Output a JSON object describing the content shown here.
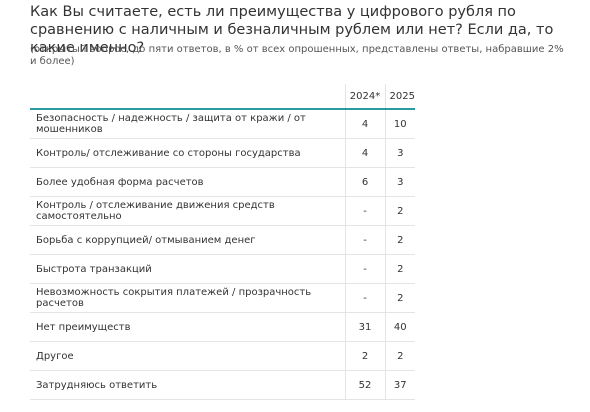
{
  "header": {
    "title": "Как Вы считаете, есть ли преимущества у цифрового рубля по сравнению с наличным и безналичным рублем или нет? Если да, то какие именно?",
    "subtitle": "(открытый вопрос, до пяти ответов, в % от всех опрошенных, представлены ответы, набравшие 2% и более)"
  },
  "table": {
    "columns": [
      "",
      "2024*",
      "2025"
    ],
    "rows": [
      [
        "Безопасность / надежность / защита от кражи / от мошенников",
        "4",
        "10"
      ],
      [
        "Контроль/ отслеживание со стороны государства",
        "4",
        "3"
      ],
      [
        "Более удобная форма расчетов",
        "6",
        "3"
      ],
      [
        "Контроль / отслеживание движения средств самостоятельно",
        "-",
        "2"
      ],
      [
        "Борьба с коррупцией/ отмыванием денег",
        "-",
        "2"
      ],
      [
        "Быстрота транзакций",
        "-",
        "2"
      ],
      [
        "Невозможность сокрытия платежей / прозрачность расчетов",
        "-",
        "2"
      ],
      [
        "Нет преимуществ",
        "31",
        "40"
      ],
      [
        "Другое",
        "2",
        "2"
      ],
      [
        "Затрудняюсь ответить",
        "52",
        "37"
      ]
    ]
  }
}
